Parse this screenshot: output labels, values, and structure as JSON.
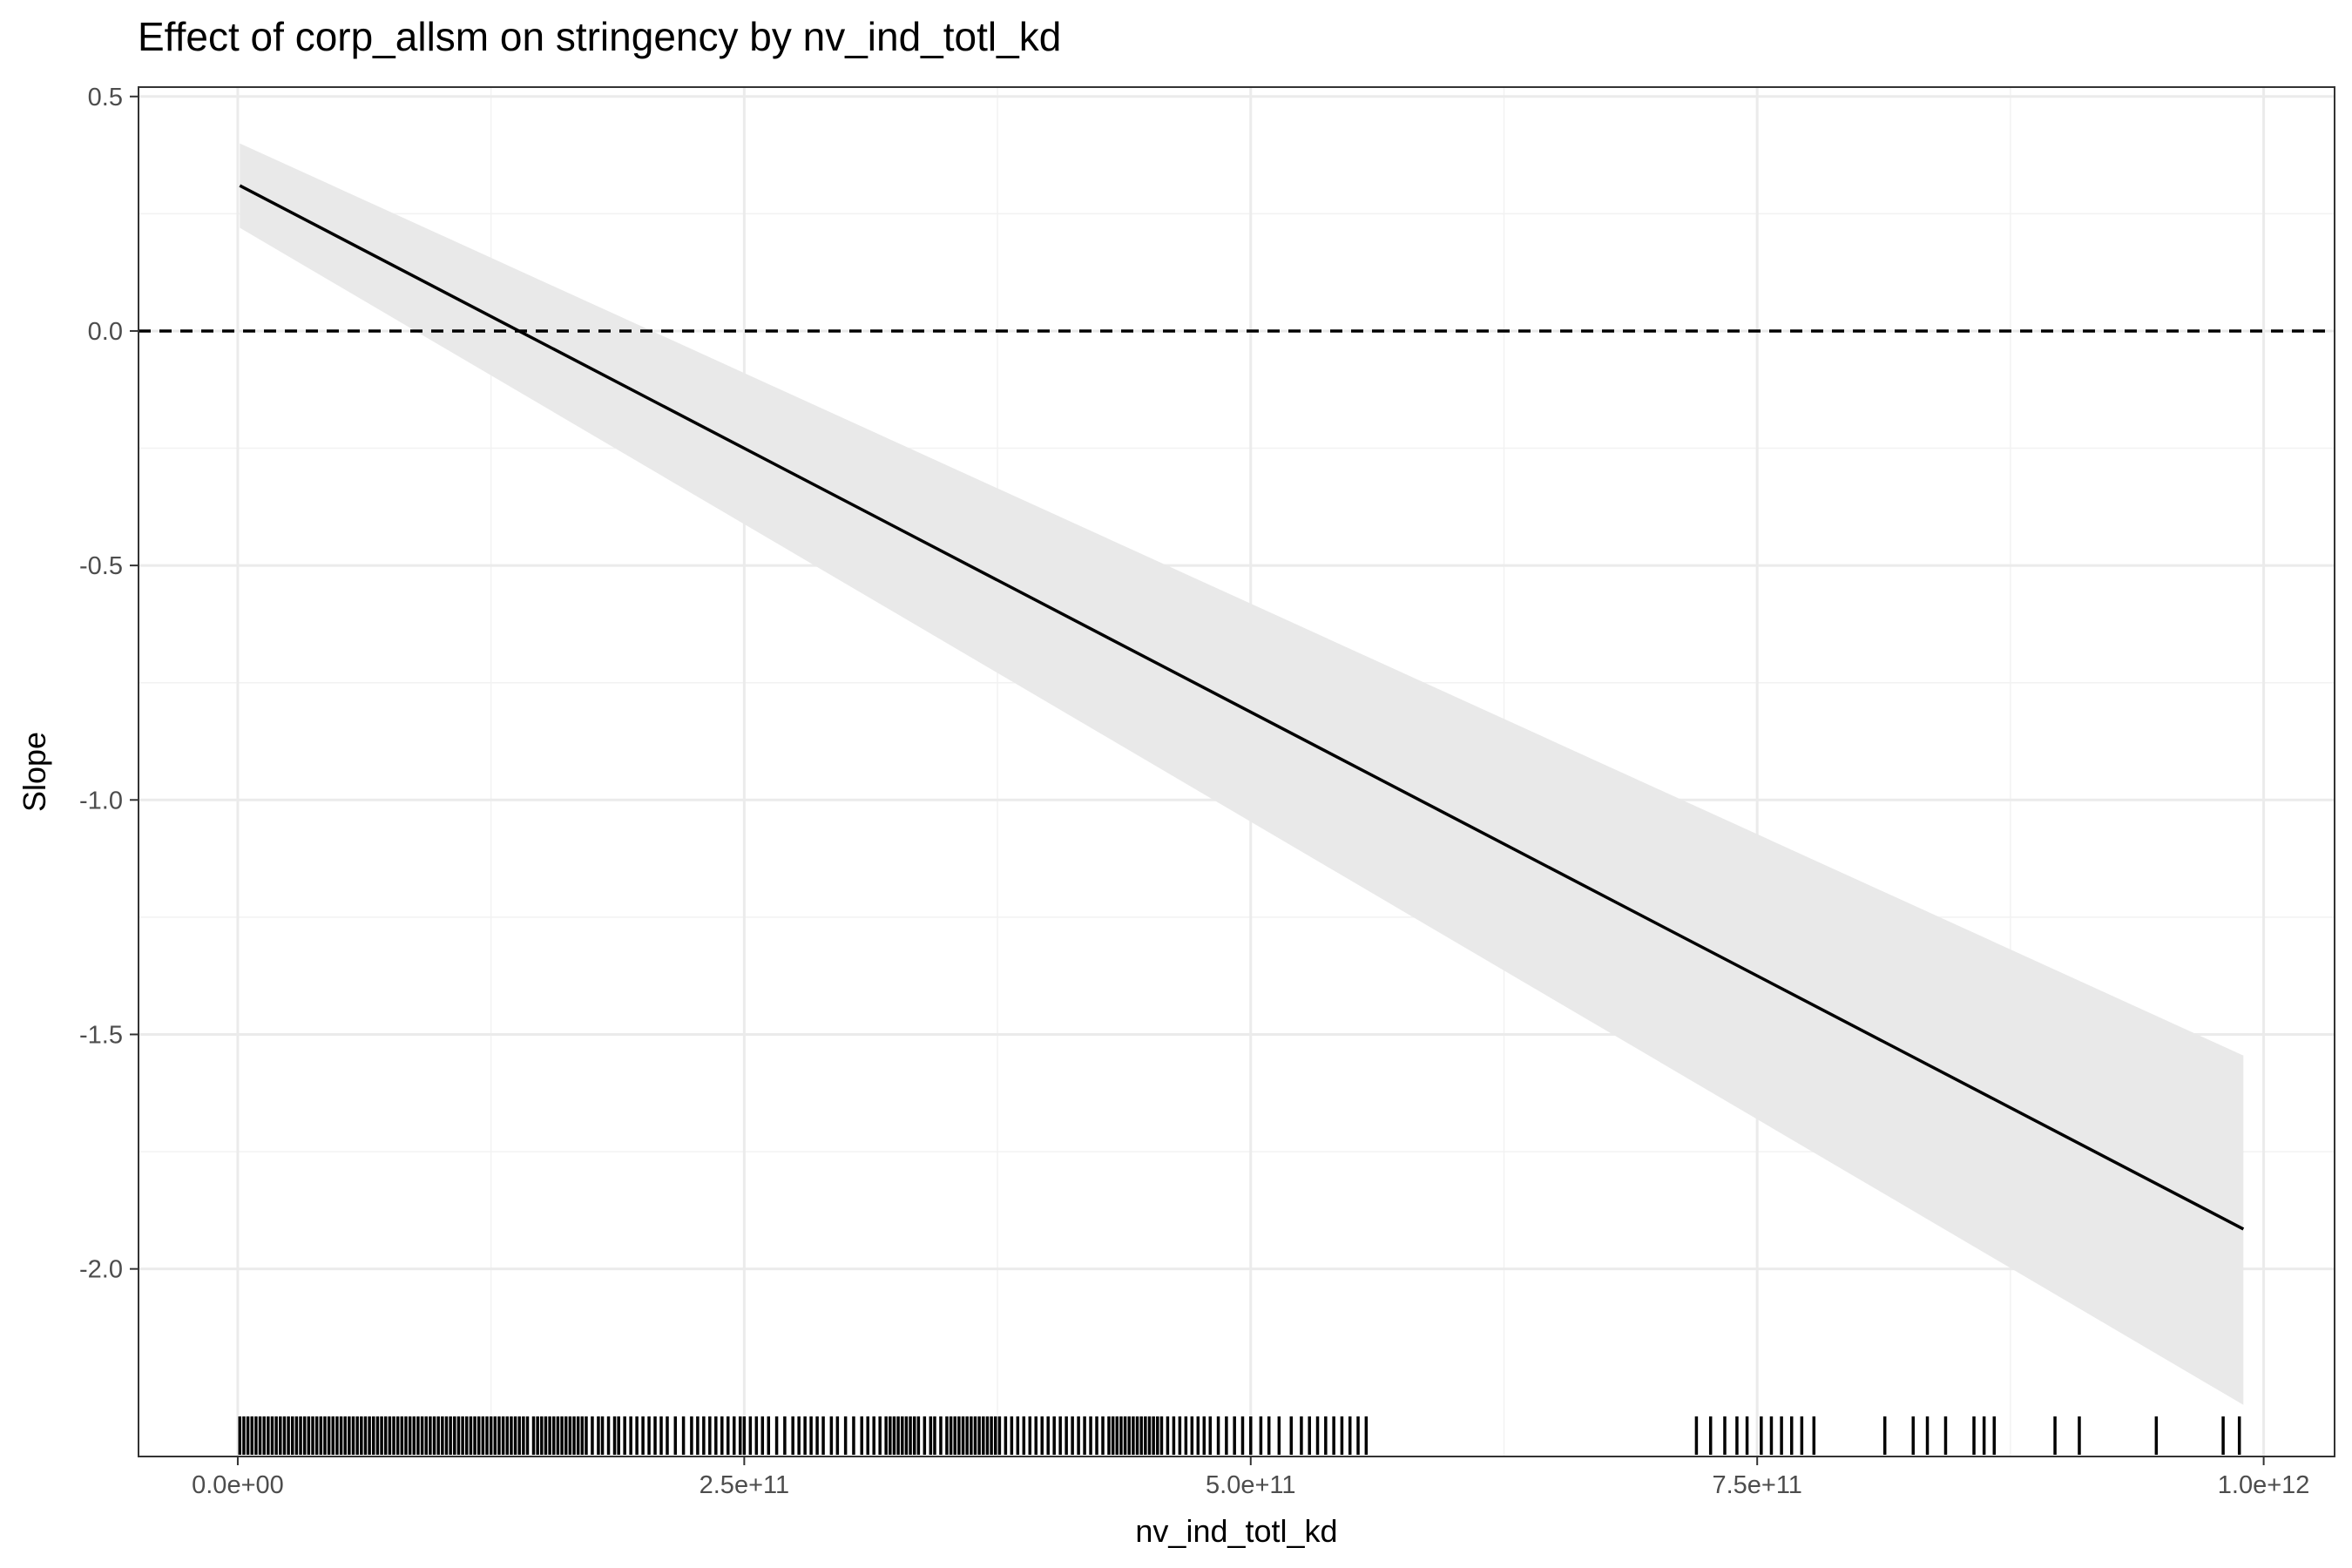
{
  "chart_data": {
    "type": "line",
    "title": "Effect of corp_allsm on stringency by nv_ind_totl_kd",
    "xlabel": "nv_ind_totl_kd",
    "ylabel": "Slope",
    "xlim": [
      -49000000000.0,
      1035000000000.0
    ],
    "ylim": [
      -2.4,
      0.52
    ],
    "x_ticks": [
      0,
      250000000000.0,
      500000000000.0,
      750000000000.0,
      1000000000000.0
    ],
    "x_tick_labels": [
      "0.0e+00",
      "2.5e+11",
      "5.0e+11",
      "7.5e+11",
      "1.0e+12"
    ],
    "y_ticks": [
      0.5,
      0,
      -0.5,
      -1,
      -1.5,
      -2
    ],
    "y_tick_labels": [
      "0.5",
      "0.0",
      "-0.5",
      "-1.0",
      "-1.5",
      "-2.0"
    ],
    "grid": true,
    "legend": "none",
    "reference_line": {
      "y": 0,
      "style": "dashed"
    },
    "series": [
      {
        "x": [
          1000000000.0,
          990000000000.0
        ],
        "values": [
          0.31,
          -1.915
        ],
        "ci_lower": [
          0.22,
          -2.29
        ],
        "ci_upper": [
          0.4,
          -1.545
        ]
      }
    ],
    "ci_color": "#e9e9e9",
    "line_color": "#000000",
    "rug_x": [
      1000000000.0,
      3000000000.0,
      5000000000.0,
      7000000000.0,
      9000000000.0,
      11000000000.0,
      13000000000.0,
      15000000000.0,
      17000000000.0,
      19000000000.0,
      21000000000.0,
      23000000000.0,
      25000000000.0,
      27000000000.0,
      29000000000.0,
      31000000000.0,
      33000000000.0,
      35000000000.0,
      37000000000.0,
      39000000000.0,
      41000000000.0,
      43000000000.0,
      45000000000.0,
      47000000000.0,
      49000000000.0,
      51000000000.0,
      53000000000.0,
      55000000000.0,
      57000000000.0,
      59000000000.0,
      61000000000.0,
      63000000000.0,
      65000000000.0,
      67000000000.0,
      69000000000.0,
      71000000000.0,
      73000000000.0,
      75000000000.0,
      77000000000.0,
      79000000000.0,
      81000000000.0,
      83000000000.0,
      85000000000.0,
      87000000000.0,
      89000000000.0,
      91000000000.0,
      93000000000.0,
      95000000000.0,
      97000000000.0,
      99000000000.0,
      101000000000.0,
      103000000000.0,
      105000000000.0,
      107000000000.0,
      109000000000.0,
      111000000000.0,
      113000000000.0,
      115000000000.0,
      117000000000.0,
      119000000000.0,
      121000000000.0,
      123000000000.0,
      125000000000.0,
      127000000000.0,
      129000000000.0,
      131000000000.0,
      133000000000.0,
      135000000000.0,
      137000000000.0,
      139000000000.0,
      141000000000.0,
      143000000000.0,
      146000000000.0,
      148000000000.0,
      150000000000.0,
      152000000000.0,
      154000000000.0,
      156000000000.0,
      158000000000.0,
      160000000000.0,
      162000000000.0,
      164000000000.0,
      166000000000.0,
      168000000000.0,
      170000000000.0,
      172000000000.0,
      175000000000.0,
      178000000000.0,
      180000000000.0,
      183000000000.0,
      186000000000.0,
      188000000000.0,
      191000000000.0,
      194000000000.0,
      197000000000.0,
      200000000000.0,
      203000000000.0,
      206000000000.0,
      209000000000.0,
      212000000000.0,
      216000000000.0,
      220000000000.0,
      224000000000.0,
      227000000000.0,
      230000000000.0,
      233000000000.0,
      236000000000.0,
      239000000000.0,
      242000000000.0,
      245000000000.0,
      248000000000.0,
      250000000000.0,
      253000000000.0,
      256000000000.0,
      259000000000.0,
      262000000000.0,
      266000000000.0,
      270000000000.0,
      274000000000.0,
      277000000000.0,
      280000000000.0,
      283000000000.0,
      286000000000.0,
      289000000000.0,
      293000000000.0,
      296000000000.0,
      300000000000.0,
      304000000000.0,
      308000000000.0,
      311000000000.0,
      314000000000.0,
      317000000000.0,
      320000000000.0,
      322000000000.0,
      324000000000.0,
      326000000000.0,
      328000000000.0,
      330000000000.0,
      332000000000.0,
      334000000000.0,
      336000000000.0,
      339000000000.0,
      342000000000.0,
      344000000000.0,
      347000000000.0,
      350000000000.0,
      352000000000.0,
      354000000000.0,
      356000000000.0,
      358000000000.0,
      360000000000.0,
      362000000000.0,
      364000000000.0,
      366000000000.0,
      368000000000.0,
      370000000000.0,
      372000000000.0,
      374000000000.0,
      376000000000.0,
      379000000000.0,
      382000000000.0,
      385000000000.0,
      388000000000.0,
      391000000000.0,
      394000000000.0,
      397000000000.0,
      400000000000.0,
      403000000000.0,
      406000000000.0,
      409000000000.0,
      412000000000.0,
      415000000000.0,
      418000000000.0,
      421000000000.0,
      424000000000.0,
      427000000000.0,
      430000000000.0,
      432000000000.0,
      434000000000.0,
      436000000000.0,
      438000000000.0,
      440000000000.0,
      442000000000.0,
      444000000000.0,
      446000000000.0,
      448000000000.0,
      450000000000.0,
      452000000000.0,
      454000000000.0,
      456000000000.0,
      459000000000.0,
      462000000000.0,
      465000000000.0,
      468000000000.0,
      471000000000.0,
      474000000000.0,
      477000000000.0,
      480000000000.0,
      484000000000.0,
      488000000000.0,
      492000000000.0,
      496000000000.0,
      500000000000.0,
      505000000000.0,
      509000000000.0,
      514000000000.0,
      520000000000.0,
      525000000000.0,
      529000000000.0,
      533000000000.0,
      537000000000.0,
      541000000000.0,
      545000000000.0,
      549000000000.0,
      553000000000.0,
      557000000000.0,
      720000000000.0,
      727000000000.0,
      734000000000.0,
      740000000000.0,
      745000000000.0,
      752000000000.0,
      757000000000.0,
      762000000000.0,
      767000000000.0,
      772000000000.0,
      778000000000.0,
      813000000000.0,
      827000000000.0,
      834000000000.0,
      843000000000.0,
      857000000000.0,
      862000000000.0,
      867000000000.0,
      897000000000.0,
      909000000000.0,
      947000000000.0,
      980000000000.0,
      988000000000.0
    ]
  }
}
